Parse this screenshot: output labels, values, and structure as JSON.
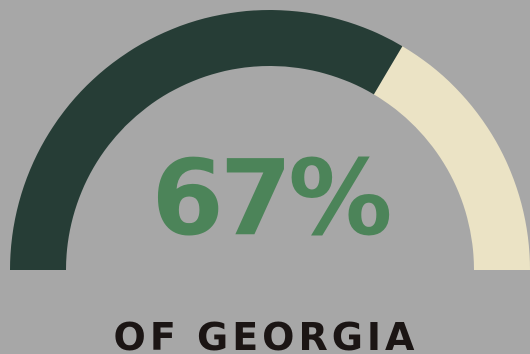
{
  "chart_data": {
    "type": "gauge",
    "value": 67,
    "max": 100,
    "value_label": "67%",
    "caption": "OF GEORGIA"
  },
  "colors": {
    "background": "#a7a7a7",
    "filled_arc": "#263d36",
    "remaining_arc": "#ebe3c5",
    "value_text": "#4c8459",
    "caption_text": "#1b1514"
  }
}
